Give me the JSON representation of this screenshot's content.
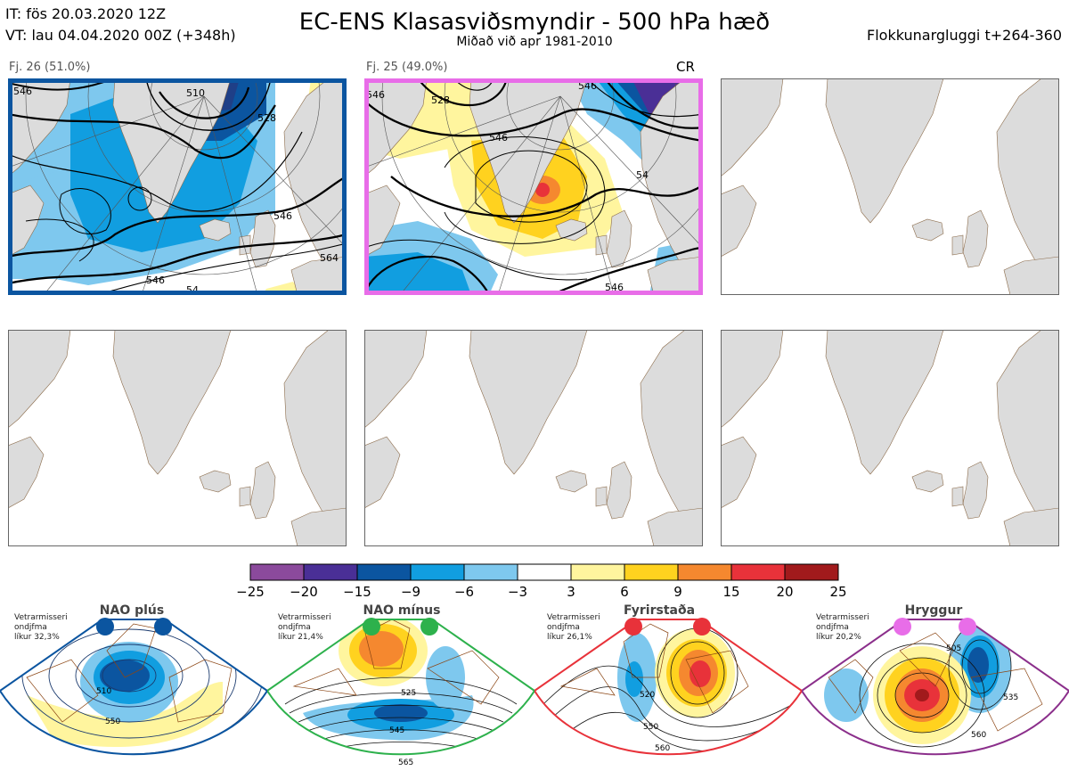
{
  "header": {
    "it": "IT: fös 20.03.2020 12Z",
    "vt": "VT: lau 04.04.2020 00Z  (+348h)",
    "title": "EC-ENS Klasasviðsmyndir - 500 hPa hæð",
    "subtitle": "Miðað við apr 1981-2010",
    "window": "Flokkunargluggi t+264-360"
  },
  "clusters": [
    {
      "label": "Fj. 26 (51.0%)",
      "frame_color": "#0b55a0",
      "contours": [
        "546",
        "510",
        "528",
        "546",
        "546",
        "564",
        "54"
      ]
    },
    {
      "label": "Fj. 25 (49.0%)",
      "frame_color": "#e86de8",
      "tag": "CR",
      "contours": [
        "528",
        "546",
        "546",
        "546",
        "54",
        "546"
      ]
    }
  ],
  "colorbar": {
    "colors": [
      "#8b4a9c",
      "#4a2f96",
      "#0b55a0",
      "#119ee0",
      "#7ec8ee",
      "#ffffff",
      "#fff59e",
      "#ffd21f",
      "#f5882f",
      "#e8323a",
      "#a11a1c"
    ],
    "ticks": [
      "−25",
      "−20",
      "−15",
      "−9",
      "−6",
      "−3",
      "3",
      "6",
      "9",
      "15",
      "20",
      "25"
    ]
  },
  "regimes": [
    {
      "name": "NAO plús",
      "note": "Vetrarmisseri\nondjfma\nlíkur 32,3%",
      "color": "#0b55a0",
      "contours": [
        "510",
        "550"
      ]
    },
    {
      "name": "NAO mínus",
      "note": "Vetrarmisseri\nondjfma\nlíkur 21,4%",
      "color": "#2db14c",
      "contours": [
        "525",
        "545",
        "565"
      ]
    },
    {
      "name": "Fyrirstaða",
      "note": "Vetrarmisseri\nondjfma\nlíkur 26,1%",
      "color": "#e8323a",
      "contours": [
        "520",
        "550",
        "560"
      ]
    },
    {
      "name": "Hryggur",
      "note": "Vetrarmisseri\nondjfma\nlíkur 20,2%",
      "color": "#e86de8",
      "contours": [
        "505",
        "535",
        "560"
      ]
    }
  ]
}
